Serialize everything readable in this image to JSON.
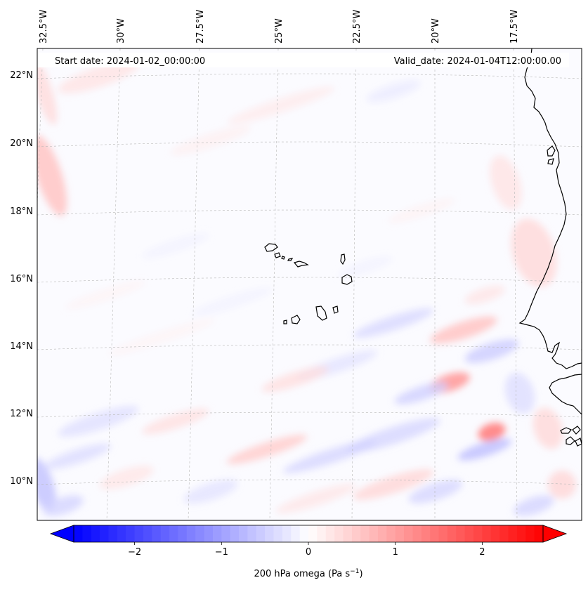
{
  "map": {
    "start_label": "Start date: 2024-01-02_00:00:00",
    "valid_label": "Valid_date: 2024-01-04T12:00:00.00",
    "lon_labels": [
      "32.5°W",
      "30°W",
      "27.5°W",
      "25°W",
      "22.5°W",
      "20°W",
      "17.5°W"
    ],
    "lat_labels": [
      "22°N",
      "20°N",
      "18°N",
      "16°N",
      "14°N",
      "12°N",
      "10°N"
    ],
    "gridlines": true,
    "coastline_color": "#000000",
    "features": [
      "Cabo Verde islands",
      "West African coastline"
    ]
  },
  "colorbar": {
    "label": "200 hPa omega (Pa s",
    "label_sup": "−1",
    "label_close": ")",
    "ticks": [
      "−2",
      "−1",
      "0",
      "1",
      "2"
    ],
    "vmin": -2.7,
    "vmax": 2.7,
    "extend": "both",
    "cmap_low": "#0000ff",
    "cmap_mid": "#ffffff",
    "cmap_high": "#ff0000"
  }
}
